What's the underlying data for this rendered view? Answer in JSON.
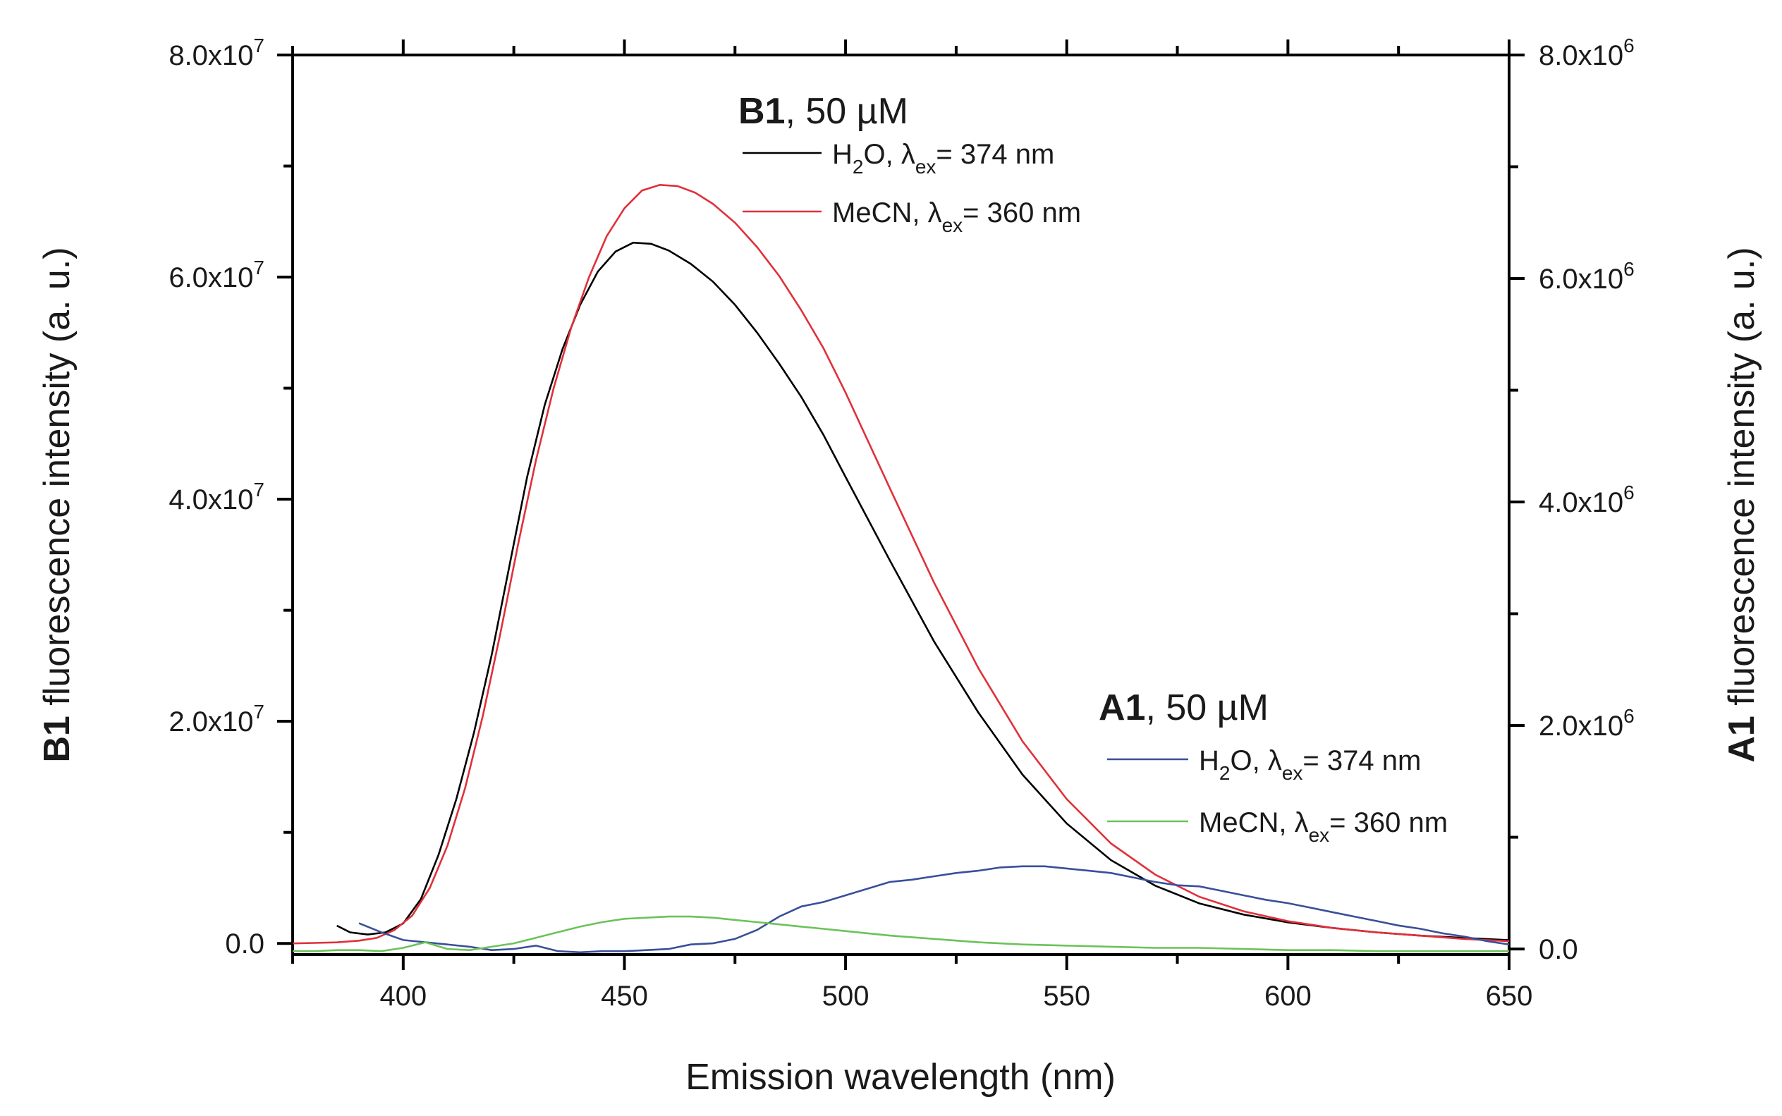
{
  "chart_data": {
    "type": "line",
    "xlabel": "Emission wavelength (nm)",
    "ylabel_left": {
      "bold": "B1",
      "rest": " fluorescence intensity (a. u.)"
    },
    "ylabel_right": {
      "bold": "A1",
      "rest": " fluorescence intensity (a. u.)"
    },
    "xlim": [
      375,
      650
    ],
    "ylim_left": [
      -1000000,
      80000000
    ],
    "ylim_right": [
      -50000,
      8000000
    ],
    "x_ticks": [
      400,
      450,
      500,
      550,
      600,
      650
    ],
    "x_tick_labels": [
      "400",
      "450",
      "500",
      "550",
      "600",
      "650"
    ],
    "y_left_ticks": [
      {
        "value": 0,
        "mantissa": "0.0",
        "exp": ""
      },
      {
        "value": 20000000,
        "mantissa": "2.0x10",
        "exp": "7"
      },
      {
        "value": 40000000,
        "mantissa": "4.0x10",
        "exp": "7"
      },
      {
        "value": 60000000,
        "mantissa": "6.0x10",
        "exp": "7"
      },
      {
        "value": 80000000,
        "mantissa": "8.0x10",
        "exp": "7"
      }
    ],
    "y_right_ticks": [
      {
        "value": 0,
        "mantissa": "0.0",
        "exp": ""
      },
      {
        "value": 2000000,
        "mantissa": "2.0x10",
        "exp": "6"
      },
      {
        "value": 4000000,
        "mantissa": "4.0x10",
        "exp": "6"
      },
      {
        "value": 6000000,
        "mantissa": "6.0x10",
        "exp": "6"
      },
      {
        "value": 8000000,
        "mantissa": "8.0x10",
        "exp": "6"
      }
    ],
    "legend_groups": [
      {
        "name_bold": "B1",
        "name_rest": ", 50 µM",
        "position": "top-center",
        "entries": [
          {
            "series": "B1 H2O",
            "solvent": "H",
            "solvent_sub": "2",
            "solvent_rest": "O, ",
            "lambda": "λ",
            "lambda_sub": "ex",
            "value": "= 374 nm"
          },
          {
            "series": "B1 MeCN",
            "solvent": "MeCN",
            "solvent_sub": "",
            "solvent_rest": ", ",
            "lambda": "λ",
            "lambda_sub": "ex",
            "value": "= 360 nm"
          }
        ]
      },
      {
        "name_bold": "A1",
        "name_rest": ", 50 µM",
        "position": "bottom-right",
        "entries": [
          {
            "series": "A1 H2O",
            "solvent": "H",
            "solvent_sub": "2",
            "solvent_rest": "O, ",
            "lambda": "λ",
            "lambda_sub": "ex",
            "value": "= 374 nm"
          },
          {
            "series": "A1 MeCN",
            "solvent": "MeCN",
            "solvent_sub": "",
            "solvent_rest": ", ",
            "lambda": "λ",
            "lambda_sub": "ex",
            "value": "= 360 nm"
          }
        ]
      }
    ],
    "series": [
      {
        "name": "B1 H2O",
        "axis": "left",
        "color": "#000000",
        "x": [
          385,
          388,
          392,
          396,
          400,
          404,
          408,
          412,
          416,
          420,
          424,
          428,
          432,
          436,
          440,
          444,
          448,
          452,
          456,
          460,
          465,
          470,
          475,
          480,
          485,
          490,
          495,
          500,
          510,
          520,
          530,
          540,
          550,
          560,
          570,
          580,
          590,
          600,
          610,
          620,
          630,
          640,
          650
        ],
        "y": [
          1600000,
          1000000,
          800000,
          1000000,
          1800000,
          4000000,
          8000000,
          13000000,
          19000000,
          26000000,
          34000000,
          42000000,
          48500000,
          53500000,
          57500000,
          60500000,
          62300000,
          63100000,
          63000000,
          62400000,
          61200000,
          59600000,
          57500000,
          55000000,
          52200000,
          49200000,
          45800000,
          42000000,
          34500000,
          27200000,
          20800000,
          15200000,
          10800000,
          7500000,
          5200000,
          3600000,
          2600000,
          1900000,
          1400000,
          1000000,
          700000,
          500000,
          300000
        ]
      },
      {
        "name": "B1 MeCN",
        "axis": "left",
        "color": "#e0303a",
        "x": [
          375,
          380,
          385,
          390,
          394,
          398,
          402,
          406,
          410,
          414,
          418,
          422,
          426,
          430,
          434,
          438,
          442,
          446,
          450,
          454,
          458,
          462,
          466,
          470,
          475,
          480,
          485,
          490,
          495,
          500,
          510,
          520,
          530,
          540,
          550,
          560,
          570,
          580,
          590,
          600,
          610,
          620,
          630,
          640,
          650
        ],
        "y": [
          0,
          50000,
          100000,
          250000,
          500000,
          1200000,
          2500000,
          5000000,
          8800000,
          14000000,
          20500000,
          28000000,
          36000000,
          43500000,
          50000000,
          55500000,
          60000000,
          63700000,
          66200000,
          67800000,
          68300000,
          68200000,
          67600000,
          66600000,
          64900000,
          62700000,
          60100000,
          57000000,
          53600000,
          49600000,
          41000000,
          32500000,
          24800000,
          18200000,
          13000000,
          9000000,
          6200000,
          4200000,
          2900000,
          2000000,
          1400000,
          1000000,
          700000,
          400000,
          200000
        ]
      },
      {
        "name": "A1 H2O",
        "axis": "right",
        "color": "#3a4f9a",
        "x": [
          390,
          395,
          400,
          405,
          410,
          415,
          420,
          425,
          430,
          435,
          440,
          445,
          450,
          455,
          460,
          465,
          470,
          475,
          480,
          485,
          490,
          495,
          500,
          505,
          510,
          515,
          520,
          525,
          530,
          535,
          540,
          545,
          550,
          555,
          560,
          565,
          570,
          575,
          580,
          585,
          590,
          595,
          600,
          605,
          610,
          615,
          620,
          625,
          630,
          635,
          640,
          645,
          650
        ],
        "y": [
          230000,
          150000,
          80000,
          60000,
          40000,
          20000,
          -10000,
          0,
          30000,
          -20000,
          -30000,
          -20000,
          -20000,
          -10000,
          0,
          40000,
          50000,
          90000,
          170000,
          290000,
          380000,
          420000,
          480000,
          540000,
          600000,
          620000,
          650000,
          680000,
          700000,
          730000,
          740000,
          740000,
          720000,
          700000,
          680000,
          640000,
          600000,
          570000,
          560000,
          520000,
          480000,
          440000,
          410000,
          370000,
          330000,
          290000,
          250000,
          210000,
          180000,
          140000,
          110000,
          70000,
          40000
        ]
      },
      {
        "name": "A1 MeCN",
        "axis": "right",
        "color": "#6cc25a",
        "x": [
          375,
          380,
          385,
          390,
          395,
          400,
          405,
          410,
          415,
          420,
          425,
          430,
          435,
          440,
          445,
          450,
          455,
          460,
          465,
          470,
          475,
          480,
          485,
          490,
          495,
          500,
          510,
          520,
          530,
          540,
          550,
          560,
          570,
          580,
          590,
          600,
          610,
          620,
          630,
          640,
          650
        ],
        "y": [
          -20000,
          -20000,
          -10000,
          -10000,
          -20000,
          10000,
          60000,
          0,
          -10000,
          20000,
          50000,
          100000,
          150000,
          200000,
          240000,
          270000,
          280000,
          290000,
          290000,
          280000,
          260000,
          240000,
          220000,
          200000,
          180000,
          160000,
          120000,
          90000,
          60000,
          40000,
          30000,
          20000,
          10000,
          10000,
          0,
          -10000,
          -10000,
          -20000,
          -20000,
          -20000,
          -20000
        ]
      }
    ]
  }
}
